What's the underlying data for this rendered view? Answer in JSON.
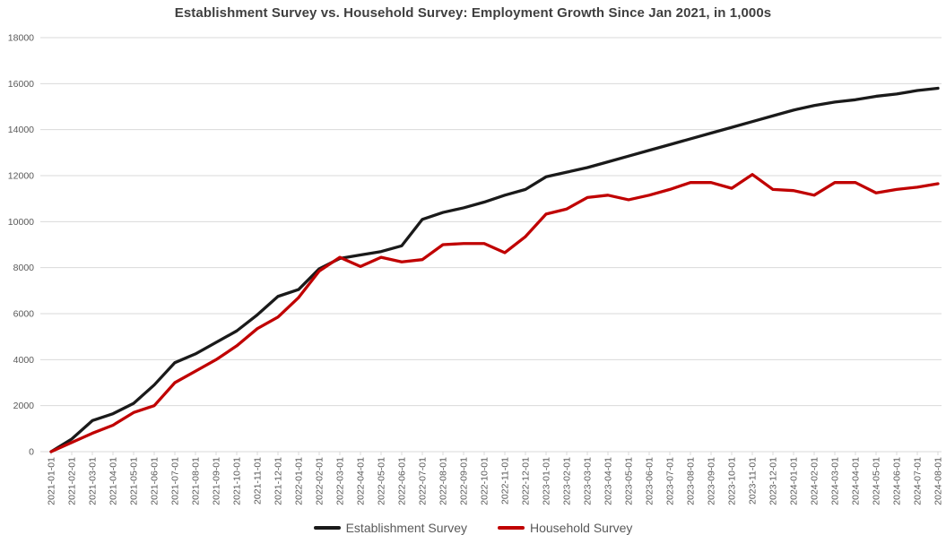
{
  "page": {
    "background": "#ffffff"
  },
  "chart_data": {
    "type": "line",
    "title": "Establishment Survey vs. Household Survey: Employment Growth Since Jan 2021, in 1,000s",
    "x_labels": [
      "2021-01-01",
      "2021-02-01",
      "2021-03-01",
      "2021-04-01",
      "2021-05-01",
      "2021-06-01",
      "2021-07-01",
      "2021-08-01",
      "2021-09-01",
      "2021-10-01",
      "2021-11-01",
      "2021-12-01",
      "2022-01-01",
      "2022-02-01",
      "2022-03-01",
      "2022-04-01",
      "2022-05-01",
      "2022-06-01",
      "2022-07-01",
      "2022-08-01",
      "2022-09-01",
      "2022-10-01",
      "2022-11-01",
      "2022-12-01",
      "2023-01-01",
      "2023-02-01",
      "2023-03-01",
      "2023-04-01",
      "2023-05-01",
      "2023-06-01",
      "2023-07-01",
      "2023-08-01",
      "2023-09-01",
      "2023-10-01",
      "2023-11-01",
      "2023-12-01",
      "2024-01-01",
      "2024-02-01",
      "2024-03-01",
      "2024-04-01",
      "2024-05-01",
      "2024-06-01",
      "2024-07-01",
      "2024-08-01"
    ],
    "series": [
      {
        "name": "Establishment Survey",
        "color": "#1a1a1a",
        "values": [
          0,
          550,
          1350,
          1650,
          2100,
          2900,
          3870,
          4250,
          4750,
          5250,
          5950,
          6750,
          7050,
          7950,
          8400,
          8550,
          8700,
          8950,
          10100,
          10400,
          10600,
          10850,
          11150,
          11400,
          11950,
          12150,
          12350,
          12600,
          12850,
          13100,
          13350,
          13600,
          13850,
          14100,
          14350,
          14600,
          14850,
          15050,
          15200,
          15300,
          15450,
          15550,
          15700,
          15800
        ]
      },
      {
        "name": "Household Survey",
        "color": "#c00000",
        "values": [
          0,
          400,
          800,
          1150,
          1700,
          2000,
          3000,
          3500,
          4000,
          4600,
          5350,
          5850,
          6700,
          7850,
          8450,
          8050,
          8450,
          8250,
          8350,
          9000,
          9050,
          9050,
          8650,
          9350,
          10330,
          10550,
          11050,
          11150,
          10950,
          11150,
          11400,
          11700,
          11700,
          11450,
          12050,
          11400,
          11350,
          11150,
          11700,
          11700,
          11250,
          11400,
          11500,
          11650
        ]
      }
    ],
    "ylim": [
      0,
      18000
    ],
    "y_ticks": [
      0,
      2000,
      4000,
      6000,
      8000,
      10000,
      12000,
      14000,
      16000,
      18000
    ],
    "grid": "horizontal",
    "legend_position": "bottom",
    "gridline_color": "#d9d9d9",
    "axis_line_color": "#d9d9d9",
    "axis_label_color": "#595959",
    "title_color": "#3f3f3f",
    "legend_text_color": "#595959"
  }
}
